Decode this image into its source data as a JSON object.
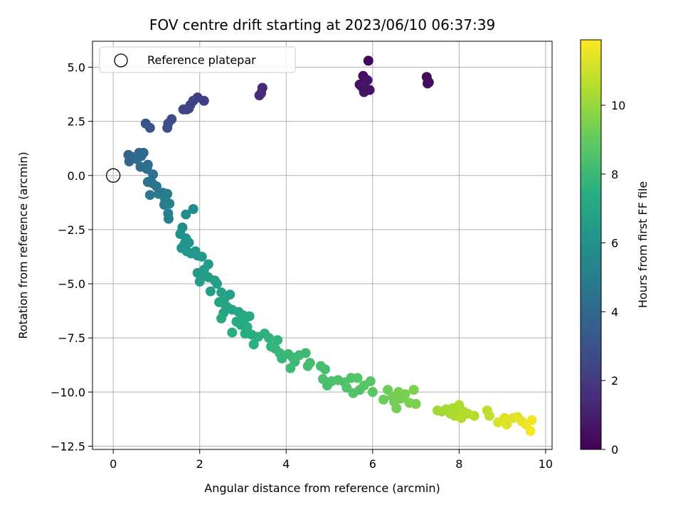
{
  "chart_data": {
    "type": "scatter",
    "title": "FOV centre drift starting at 2023/06/10 06:37:39",
    "xlabel": "Angular distance from reference (arcmin)",
    "ylabel": "Rotation from reference (arcmin)",
    "xlim": [
      -0.48,
      10.15
    ],
    "ylim": [
      -12.65,
      6.2
    ],
    "xticks": [
      0,
      2,
      4,
      6,
      8,
      10
    ],
    "xtick_labels": [
      "0",
      "2",
      "4",
      "6",
      "8",
      "10"
    ],
    "yticks": [
      5.0,
      2.5,
      0.0,
      -2.5,
      -5.0,
      -7.5,
      -10.0,
      -12.5
    ],
    "ytick_labels": [
      "5.0",
      "2.5",
      "0.0",
      "−2.5",
      "−5.0",
      "−7.5",
      "−10.0",
      "−12.5"
    ],
    "grid": true,
    "legend": {
      "placement": "upper-left",
      "entries": [
        "Reference platepar"
      ]
    },
    "reference_point": {
      "x": 0,
      "y": 0
    },
    "colorbar": {
      "label": "Hours from first FF file",
      "colormap": "viridis",
      "range": [
        0,
        11.9
      ],
      "ticks": [
        0,
        2,
        4,
        6,
        8,
        10
      ],
      "tick_labels": [
        "0",
        "2",
        "4",
        "6",
        "8",
        "10"
      ]
    },
    "points": [
      [
        5.9,
        5.3,
        0.2
      ],
      [
        7.25,
        4.55,
        0.3
      ],
      [
        7.3,
        4.3,
        0.3
      ],
      [
        7.27,
        4.25,
        0.4
      ],
      [
        5.7,
        4.2,
        0.5
      ],
      [
        5.78,
        4.6,
        0.5
      ],
      [
        5.88,
        4.4,
        0.6
      ],
      [
        5.8,
        3.85,
        0.7
      ],
      [
        5.93,
        3.95,
        0.6
      ],
      [
        5.75,
        4.1,
        0.7
      ],
      [
        5.82,
        4.0,
        0.6
      ],
      [
        3.45,
        4.05,
        1.4
      ],
      [
        3.38,
        3.7,
        1.5
      ],
      [
        3.42,
        3.8,
        1.5
      ],
      [
        1.95,
        3.6,
        2.1
      ],
      [
        2.1,
        3.45,
        2.2
      ],
      [
        1.85,
        3.45,
        2.3
      ],
      [
        1.78,
        3.25,
        2.3
      ],
      [
        1.7,
        3.05,
        2.4
      ],
      [
        1.62,
        3.05,
        2.4
      ],
      [
        1.75,
        3.1,
        2.5
      ],
      [
        1.35,
        2.6,
        2.7
      ],
      [
        1.27,
        2.4,
        2.8
      ],
      [
        1.25,
        2.2,
        2.9
      ],
      [
        0.75,
        2.4,
        3.0
      ],
      [
        0.85,
        2.2,
        3.1
      ],
      [
        0.35,
        0.95,
        3.8
      ],
      [
        0.45,
        0.85,
        3.9
      ],
      [
        0.37,
        0.65,
        3.9
      ],
      [
        0.6,
        1.05,
        4.0
      ],
      [
        0.7,
        1.05,
        4.0
      ],
      [
        0.65,
        0.9,
        4.1
      ],
      [
        0.55,
        0.75,
        4.1
      ],
      [
        0.63,
        0.4,
        4.2
      ],
      [
        0.8,
        0.5,
        4.2
      ],
      [
        0.78,
        0.3,
        4.3
      ],
      [
        0.92,
        0.05,
        4.4
      ],
      [
        0.8,
        -0.3,
        4.4
      ],
      [
        0.9,
        -0.35,
        4.5
      ],
      [
        1.0,
        -0.5,
        4.6
      ],
      [
        0.85,
        -0.9,
        4.7
      ],
      [
        1.05,
        -0.85,
        4.7
      ],
      [
        1.15,
        -0.8,
        4.8
      ],
      [
        1.2,
        -1.1,
        4.9
      ],
      [
        1.25,
        -0.85,
        4.9
      ],
      [
        1.18,
        -1.35,
        5.0
      ],
      [
        1.27,
        -1.75,
        5.1
      ],
      [
        1.28,
        -2.0,
        5.1
      ],
      [
        1.3,
        -1.3,
        5.2
      ],
      [
        1.68,
        -1.8,
        5.7
      ],
      [
        1.85,
        -1.55,
        5.8
      ],
      [
        1.6,
        -2.4,
        5.8
      ],
      [
        1.55,
        -2.7,
        5.9
      ],
      [
        1.68,
        -2.9,
        6.0
      ],
      [
        1.65,
        -3.15,
        6.0
      ],
      [
        1.75,
        -3.1,
        6.1
      ],
      [
        1.58,
        -3.35,
        6.1
      ],
      [
        1.7,
        -3.5,
        6.2
      ],
      [
        1.8,
        -3.6,
        6.2
      ],
      [
        1.9,
        -3.5,
        6.3
      ],
      [
        1.95,
        -3.7,
        6.3
      ],
      [
        2.05,
        -3.75,
        6.4
      ],
      [
        1.95,
        -4.5,
        6.4
      ],
      [
        2.1,
        -4.35,
        6.5
      ],
      [
        2.2,
        -4.1,
        6.5
      ],
      [
        2.0,
        -4.9,
        6.5
      ],
      [
        2.2,
        -4.7,
        6.6
      ],
      [
        2.12,
        -4.6,
        6.6
      ],
      [
        2.35,
        -4.85,
        6.6
      ],
      [
        2.25,
        -5.35,
        6.7
      ],
      [
        2.4,
        -5.0,
        6.7
      ],
      [
        2.5,
        -5.4,
        6.8
      ],
      [
        2.6,
        -5.6,
        6.8
      ],
      [
        2.7,
        -5.5,
        6.8
      ],
      [
        2.45,
        -5.85,
        6.9
      ],
      [
        2.58,
        -5.95,
        6.9
      ],
      [
        2.65,
        -6.1,
        7.0
      ],
      [
        2.75,
        -6.2,
        7.0
      ],
      [
        2.55,
        -6.35,
        7.0
      ],
      [
        2.9,
        -6.3,
        7.1
      ],
      [
        3.0,
        -6.45,
        7.1
      ],
      [
        3.05,
        -6.6,
        7.2
      ],
      [
        3.15,
        -6.5,
        7.2
      ],
      [
        2.5,
        -6.6,
        7.2
      ],
      [
        2.85,
        -6.75,
        7.3
      ],
      [
        2.95,
        -6.9,
        7.3
      ],
      [
        3.1,
        -7.0,
        7.3
      ],
      [
        2.75,
        -7.25,
        7.4
      ],
      [
        3.05,
        -7.3,
        7.4
      ],
      [
        3.2,
        -7.35,
        7.4
      ],
      [
        3.35,
        -7.45,
        7.5
      ],
      [
        3.25,
        -7.8,
        7.5
      ],
      [
        3.5,
        -7.3,
        7.6
      ],
      [
        3.6,
        -7.5,
        7.7
      ],
      [
        3.8,
        -7.6,
        7.7
      ],
      [
        3.65,
        -7.9,
        7.8
      ],
      [
        3.75,
        -8.0,
        7.8
      ],
      [
        3.85,
        -8.2,
        7.9
      ],
      [
        3.9,
        -8.45,
        7.9
      ],
      [
        4.05,
        -8.25,
        8.0
      ],
      [
        4.15,
        -8.4,
        8.0
      ],
      [
        4.2,
        -8.6,
        8.0
      ],
      [
        4.1,
        -8.9,
        8.1
      ],
      [
        4.3,
        -8.3,
        8.1
      ],
      [
        4.45,
        -8.2,
        8.1
      ],
      [
        4.5,
        -8.8,
        8.2
      ],
      [
        4.55,
        -8.65,
        8.2
      ],
      [
        4.8,
        -8.8,
        8.3
      ],
      [
        4.9,
        -8.95,
        8.3
      ],
      [
        4.85,
        -9.4,
        8.4
      ],
      [
        4.95,
        -9.7,
        8.4
      ],
      [
        5.05,
        -9.5,
        8.4
      ],
      [
        5.2,
        -9.45,
        8.5
      ],
      [
        5.35,
        -9.55,
        8.5
      ],
      [
        5.5,
        -9.35,
        8.5
      ],
      [
        5.4,
        -9.8,
        8.6
      ],
      [
        5.55,
        -10.05,
        8.6
      ],
      [
        5.7,
        -9.9,
        8.6
      ],
      [
        5.8,
        -9.7,
        8.7
      ],
      [
        5.95,
        -9.5,
        8.7
      ],
      [
        5.65,
        -9.35,
        8.7
      ],
      [
        6.0,
        -10.0,
        8.8
      ],
      [
        6.25,
        -10.35,
        9.2
      ],
      [
        6.35,
        -9.9,
        9.2
      ],
      [
        6.45,
        -10.2,
        9.3
      ],
      [
        6.5,
        -10.45,
        9.3
      ],
      [
        6.55,
        -10.75,
        9.3
      ],
      [
        6.6,
        -10.0,
        9.4
      ],
      [
        6.65,
        -10.3,
        9.4
      ],
      [
        6.75,
        -10.1,
        9.4
      ],
      [
        6.85,
        -10.5,
        9.5
      ],
      [
        6.95,
        -9.9,
        9.5
      ],
      [
        7.0,
        -10.55,
        9.5
      ],
      [
        7.5,
        -10.85,
        10.2
      ],
      [
        7.6,
        -10.9,
        10.2
      ],
      [
        7.7,
        -10.8,
        10.3
      ],
      [
        7.8,
        -11.0,
        10.3
      ],
      [
        7.85,
        -10.75,
        10.3
      ],
      [
        7.9,
        -11.1,
        10.4
      ],
      [
        7.95,
        -10.9,
        10.4
      ],
      [
        8.0,
        -10.6,
        10.4
      ],
      [
        8.05,
        -11.2,
        10.5
      ],
      [
        8.1,
        -10.9,
        10.5
      ],
      [
        8.2,
        -11.0,
        10.5
      ],
      [
        8.35,
        -11.1,
        10.6
      ],
      [
        8.65,
        -10.85,
        10.7
      ],
      [
        8.7,
        -11.1,
        10.8
      ],
      [
        8.9,
        -11.4,
        11.2
      ],
      [
        9.05,
        -11.2,
        11.3
      ],
      [
        9.1,
        -11.5,
        11.3
      ],
      [
        9.25,
        -11.2,
        11.4
      ],
      [
        9.35,
        -11.15,
        11.4
      ],
      [
        9.45,
        -11.35,
        11.5
      ],
      [
        9.55,
        -11.5,
        11.6
      ],
      [
        9.65,
        -11.8,
        11.8
      ],
      [
        9.68,
        -11.3,
        11.7
      ]
    ]
  }
}
